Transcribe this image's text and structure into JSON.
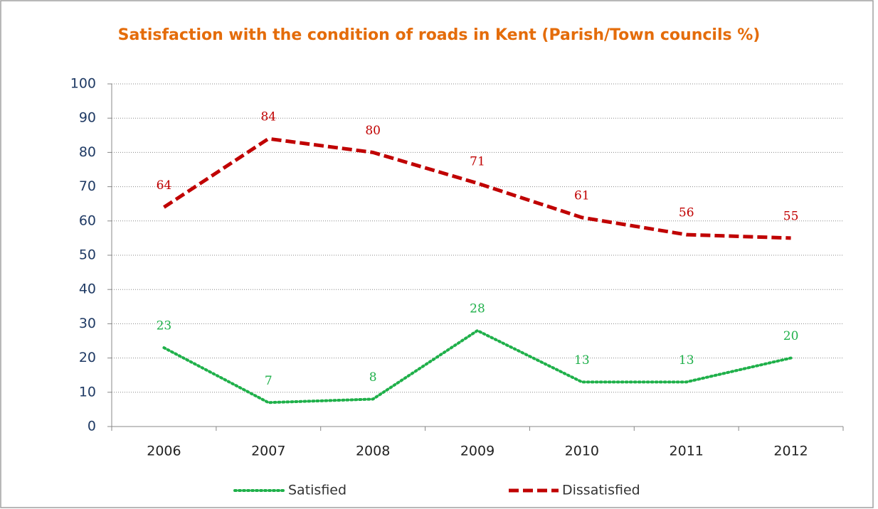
{
  "chart_data": {
    "type": "line",
    "title": "Satisfaction with the condition of roads in Kent (Parish/Town councils %)",
    "categories": [
      "2006",
      "2007",
      "2008",
      "2009",
      "2010",
      "2011",
      "2012"
    ],
    "series": [
      {
        "name": "Satisfied",
        "color": "#1fb04a",
        "dash": "dotted",
        "values": [
          23,
          7,
          8,
          28,
          13,
          13,
          20
        ]
      },
      {
        "name": "Dissatisfied",
        "color": "#c00000",
        "dash": "dashed",
        "values": [
          64,
          84,
          80,
          71,
          61,
          56,
          55
        ]
      }
    ],
    "ylim": [
      0,
      100
    ],
    "yticks": [
      0,
      10,
      20,
      30,
      40,
      50,
      60,
      70,
      80,
      90,
      100
    ],
    "grid": true,
    "legend": "bottom"
  }
}
